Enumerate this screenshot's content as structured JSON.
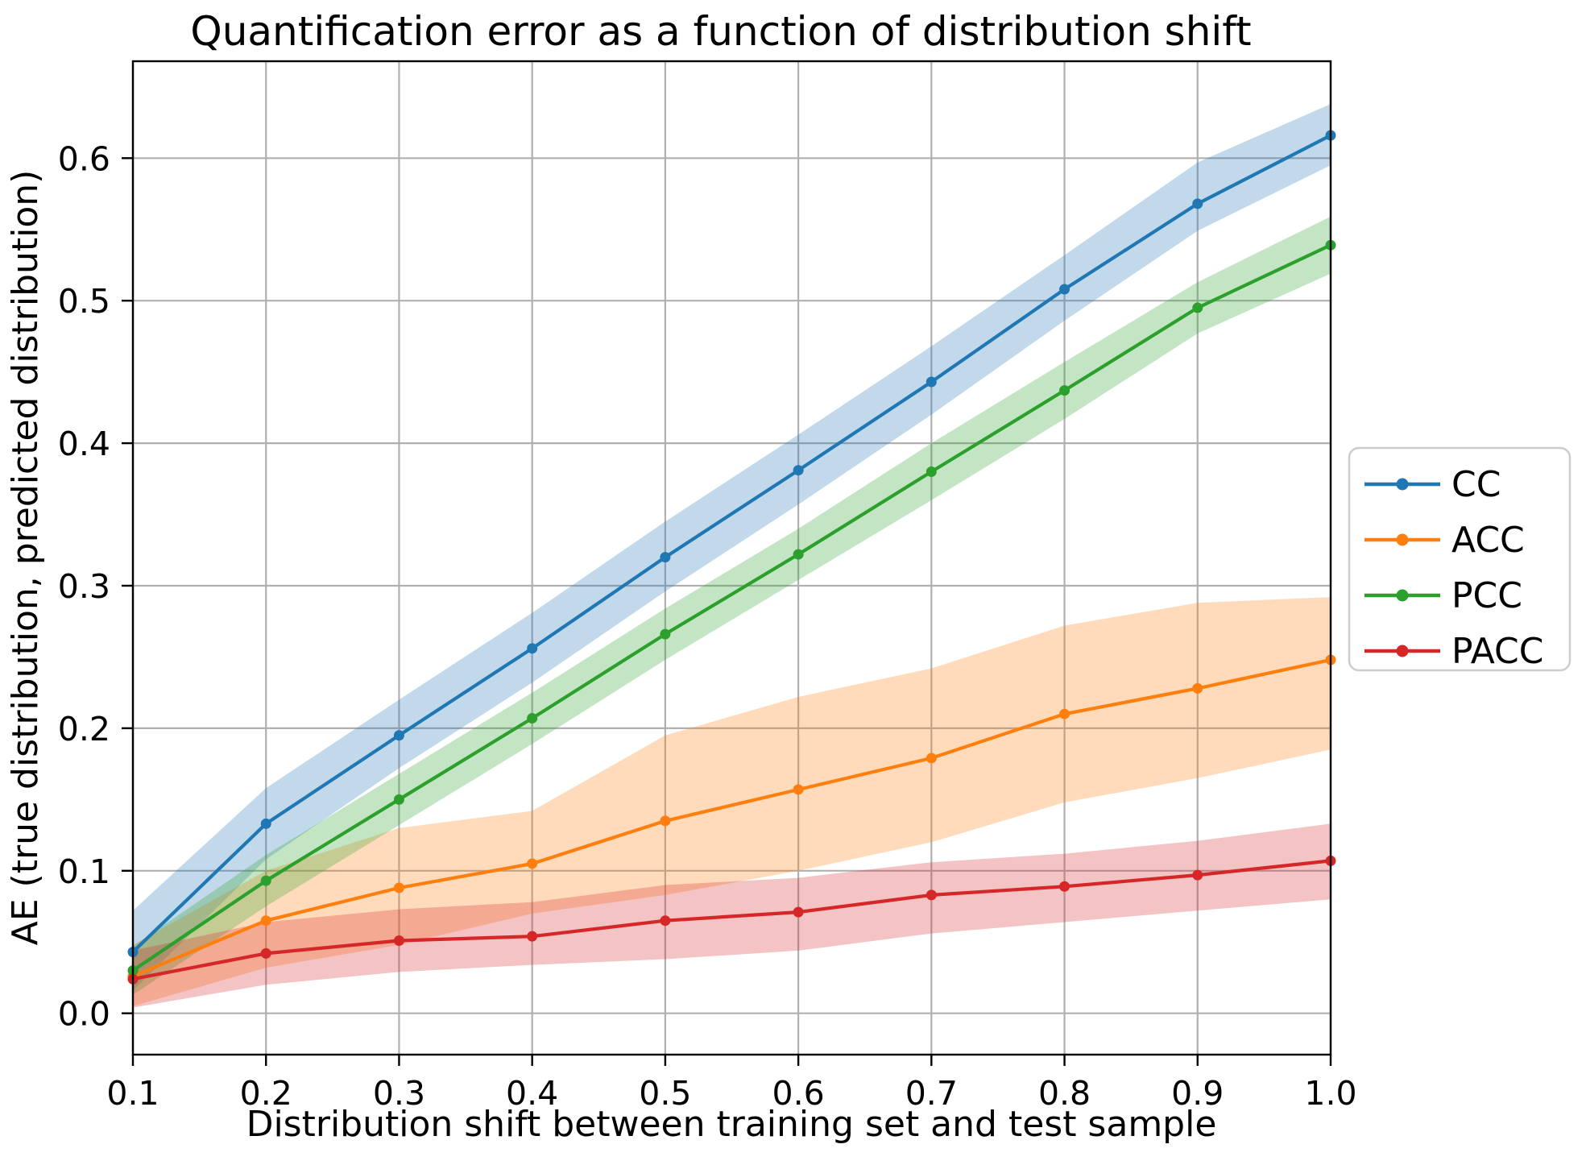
{
  "chart_data": {
    "type": "line",
    "title": "Quantification error as a function of distribution shift",
    "xlabel": "Distribution shift between training set and test sample",
    "ylabel": "AE (true distribution, predicted distribution)",
    "x": [
      0.1,
      0.2,
      0.3,
      0.4,
      0.5,
      0.6,
      0.7,
      0.8,
      0.9,
      1.0
    ],
    "xticks": [
      0.1,
      0.2,
      0.3,
      0.4,
      0.5,
      0.6,
      0.7,
      0.8,
      0.9,
      1.0
    ],
    "yticks": [
      0.0,
      0.1,
      0.2,
      0.3,
      0.4,
      0.5,
      0.6
    ],
    "xlim": [
      0.1,
      1.0
    ],
    "ylim": [
      -0.029,
      0.668
    ],
    "grid": true,
    "grid_color": "#b0b0b0",
    "spine_color": "#000000",
    "band_alpha": 0.28,
    "legend_position": "outside-right",
    "series": [
      {
        "name": "CC",
        "color": "#1f77b4",
        "values": [
          0.043,
          0.133,
          0.195,
          0.256,
          0.32,
          0.381,
          0.443,
          0.508,
          0.568,
          0.616
        ],
        "band_lower": [
          0.016,
          0.108,
          0.172,
          0.232,
          0.296,
          0.357,
          0.42,
          0.486,
          0.549,
          0.595
        ],
        "band_upper": [
          0.072,
          0.158,
          0.22,
          0.281,
          0.345,
          0.406,
          0.468,
          0.532,
          0.597,
          0.638
        ]
      },
      {
        "name": "ACC",
        "color": "#ff7f0e",
        "values": [
          0.026,
          0.065,
          0.088,
          0.105,
          0.135,
          0.157,
          0.179,
          0.21,
          0.228,
          0.248
        ],
        "band_lower": [
          0.005,
          0.032,
          0.048,
          0.07,
          0.083,
          0.1,
          0.12,
          0.148,
          0.165,
          0.185
        ],
        "band_upper": [
          0.048,
          0.1,
          0.13,
          0.142,
          0.195,
          0.222,
          0.242,
          0.272,
          0.288,
          0.292
        ]
      },
      {
        "name": "PCC",
        "color": "#2ca02c",
        "values": [
          0.03,
          0.093,
          0.15,
          0.207,
          0.266,
          0.322,
          0.38,
          0.437,
          0.495,
          0.539
        ],
        "band_lower": [
          0.013,
          0.075,
          0.132,
          0.189,
          0.248,
          0.304,
          0.36,
          0.417,
          0.477,
          0.519
        ],
        "band_upper": [
          0.047,
          0.111,
          0.168,
          0.225,
          0.284,
          0.34,
          0.4,
          0.457,
          0.513,
          0.559
        ]
      },
      {
        "name": "PACC",
        "color": "#d62728",
        "values": [
          0.024,
          0.042,
          0.051,
          0.054,
          0.065,
          0.071,
          0.083,
          0.089,
          0.097,
          0.107
        ],
        "band_lower": [
          0.004,
          0.02,
          0.029,
          0.034,
          0.038,
          0.044,
          0.056,
          0.064,
          0.072,
          0.08
        ],
        "band_upper": [
          0.044,
          0.064,
          0.073,
          0.078,
          0.09,
          0.095,
          0.106,
          0.112,
          0.121,
          0.133
        ]
      }
    ]
  }
}
